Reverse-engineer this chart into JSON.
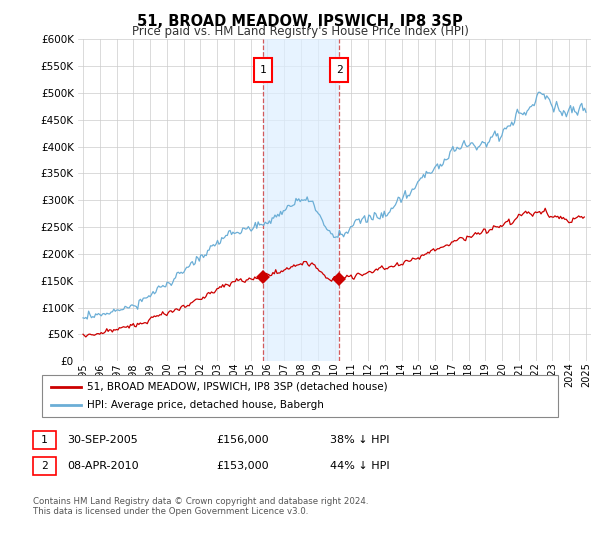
{
  "title": "51, BROAD MEADOW, IPSWICH, IP8 3SP",
  "subtitle": "Price paid vs. HM Land Registry's House Price Index (HPI)",
  "ylim": [
    0,
    600000
  ],
  "yticks": [
    0,
    50000,
    100000,
    150000,
    200000,
    250000,
    300000,
    350000,
    400000,
    450000,
    500000,
    550000,
    600000
  ],
  "hpi_color": "#6baed6",
  "price_color": "#cc0000",
  "sale1_date_x": 2005.75,
  "sale1_price": 156000,
  "sale2_date_x": 2010.27,
  "sale2_price": 153000,
  "legend_line1": "51, BROAD MEADOW, IPSWICH, IP8 3SP (detached house)",
  "legend_line2": "HPI: Average price, detached house, Babergh",
  "table_row1_num": "1",
  "table_row1_date": "30-SEP-2005",
  "table_row1_price": "£156,000",
  "table_row1_hpi": "38% ↓ HPI",
  "table_row2_num": "2",
  "table_row2_date": "08-APR-2010",
  "table_row2_price": "£153,000",
  "table_row2_hpi": "44% ↓ HPI",
  "footnote1": "Contains HM Land Registry data © Crown copyright and database right 2024.",
  "footnote2": "This data is licensed under the Open Government Licence v3.0.",
  "background_color": "#ffffff",
  "grid_color": "#cccccc",
  "highlight_fill": "#ddeeff",
  "xmin": 1995,
  "xmax": 2025
}
